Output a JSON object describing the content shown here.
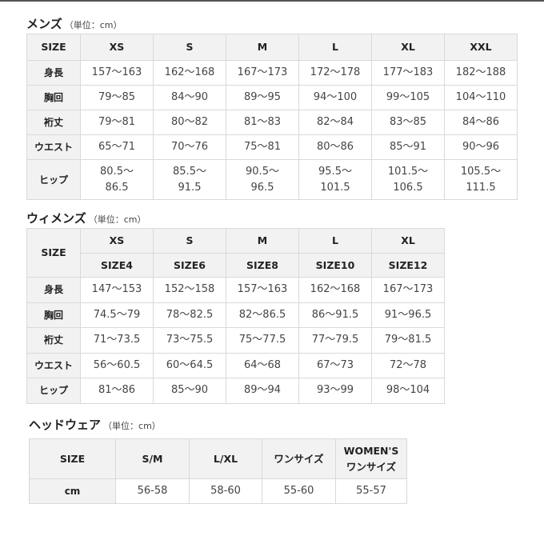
{
  "mens": {
    "title": "メンズ",
    "unit": "（単位：cm）",
    "header": [
      "SIZE",
      "XS",
      "S",
      "M",
      "L",
      "XL",
      "XXL"
    ],
    "rows": [
      {
        "label": "身長",
        "values": [
          "157～163",
          "162～168",
          "167～173",
          "172～178",
          "177～183",
          "182～188"
        ]
      },
      {
        "label": "胸回",
        "values": [
          "79～85",
          "84～90",
          "89～95",
          "94～100",
          "99～105",
          "104～110"
        ]
      },
      {
        "label": "裄丈",
        "values": [
          "79～81",
          "80～82",
          "81～83",
          "82～84",
          "83～85",
          "84～86"
        ]
      },
      {
        "label": "ウエスト",
        "values": [
          "65～71",
          "70～76",
          "75～81",
          "80～86",
          "85～91",
          "90～96"
        ]
      },
      {
        "label": "ヒップ",
        "values": [
          "80.5～\n86.5",
          "85.5～\n91.5",
          "90.5～\n96.5",
          "95.5～\n101.5",
          "101.5～\n106.5",
          "105.5～\n111.5"
        ]
      }
    ]
  },
  "womens": {
    "title": "ウィメンズ",
    "unit": "（単位：cm）",
    "size_label": "SIZE",
    "header": [
      "XS",
      "S",
      "M",
      "L",
      "XL"
    ],
    "header2": [
      "SIZE4",
      "SIZE6",
      "SIZE8",
      "SIZE10",
      "SIZE12"
    ],
    "rows": [
      {
        "label": "身長",
        "values": [
          "147～153",
          "152～158",
          "157～163",
          "162～168",
          "167～173"
        ]
      },
      {
        "label": "胸回",
        "values": [
          "74.5～79",
          "78～82.5",
          "82～86.5",
          "86～91.5",
          "91～96.5"
        ]
      },
      {
        "label": "裄丈",
        "values": [
          "71～73.5",
          "73～75.5",
          "75～77.5",
          "77～79.5",
          "79～81.5"
        ]
      },
      {
        "label": "ウエスト",
        "values": [
          "56～60.5",
          "60～64.5",
          "64～68",
          "67～73",
          "72～78"
        ]
      },
      {
        "label": "ヒップ",
        "values": [
          "81～86",
          "85～90",
          "89～94",
          "93～99",
          "98～104"
        ]
      }
    ]
  },
  "headwear": {
    "title": "ヘッドウェア",
    "unit": "（単位：cm）",
    "header": [
      "SIZE",
      "S/M",
      "L/XL",
      "ワンサイズ",
      "WOMEN'S\nワンサイズ"
    ],
    "rows": [
      {
        "label": "cm",
        "values": [
          "56-58",
          "58-60",
          "55-60",
          "55-57"
        ]
      }
    ]
  }
}
